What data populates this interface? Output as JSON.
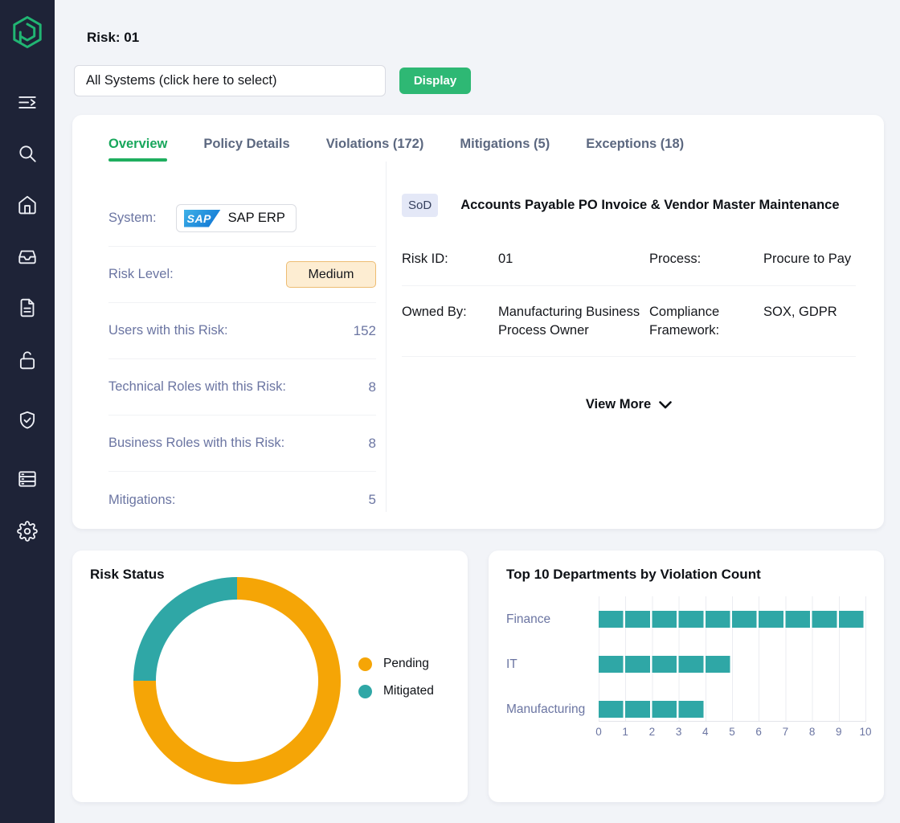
{
  "app": {
    "name": "Pathlock",
    "logo_color": "#21B573",
    "sidebar_bg": "#1E2337"
  },
  "sidebar": {
    "icons": [
      {
        "name": "menu-collapse"
      },
      {
        "name": "search"
      },
      {
        "name": "home"
      },
      {
        "name": "inbox"
      },
      {
        "name": "document"
      },
      {
        "name": "lock-open"
      },
      {
        "name": "shield-check"
      },
      {
        "name": "list"
      },
      {
        "name": "settings"
      }
    ]
  },
  "header": {
    "title": "Risk: 01",
    "system_selector_value": "All Systems (click here to select)",
    "display_button_label": "Display"
  },
  "tabs": [
    {
      "label": "Overview",
      "active": true
    },
    {
      "label": "Policy Details",
      "active": false
    },
    {
      "label": "Violations (172)",
      "active": false
    },
    {
      "label": "Mitigations (5)",
      "active": false
    },
    {
      "label": "Exceptions (18)",
      "active": false
    }
  ],
  "overview": {
    "fields": [
      {
        "label": "System:",
        "value": "SAP ERP",
        "logo_text": "SAP"
      },
      {
        "label": "Risk Level:",
        "value": "Medium"
      },
      {
        "label": "Users with this Risk:",
        "value": "152"
      },
      {
        "label": "Technical Roles with this Risk:",
        "value": "8"
      },
      {
        "label": "Business Roles with this Risk:",
        "value": "8"
      },
      {
        "label": "Mitigations:",
        "value": "5"
      }
    ],
    "risk_level_badge": {
      "bg": "#FDEDD2",
      "border": "#EDBC72"
    },
    "detail": {
      "type_badge": "SoD",
      "title": "Accounts Payable PO Invoice & Vendor Master Maintenance",
      "rows": [
        {
          "label1": "Risk ID:",
          "value1": "01",
          "label2": "Process:",
          "value2": "Procure to Pay"
        },
        {
          "label1": "Owned By:",
          "value1": "Manufacturing Business Process Owner",
          "label2": "Compliance Framework:",
          "value2": "SOX, GDPR"
        }
      ],
      "view_more_label": "View More"
    }
  },
  "chart_data": [
    {
      "type": "pie",
      "donut": true,
      "title": "Risk Status",
      "series": [
        {
          "name": "Pending",
          "value": 75,
          "color": "#F5A506"
        },
        {
          "name": "Mitigated",
          "value": 25,
          "color": "#2FA7A6"
        }
      ],
      "unit": "percent (estimated from arc angles)",
      "start_angle": "top",
      "direction": "clockwise",
      "legend_position": "right"
    },
    {
      "type": "bar",
      "orientation": "horizontal",
      "title": "Top 10 Departments by Violation Count",
      "categories": [
        "Finance",
        "IT",
        "Manufacturing"
      ],
      "values": [
        10,
        5,
        4
      ],
      "xlim": [
        0,
        10
      ],
      "xticks": [
        0,
        1,
        2,
        3,
        4,
        5,
        6,
        7,
        8,
        9,
        10
      ],
      "bar_color": "#2FA7A6",
      "grid": true,
      "axis_label_color": "#6B75A2"
    }
  ]
}
